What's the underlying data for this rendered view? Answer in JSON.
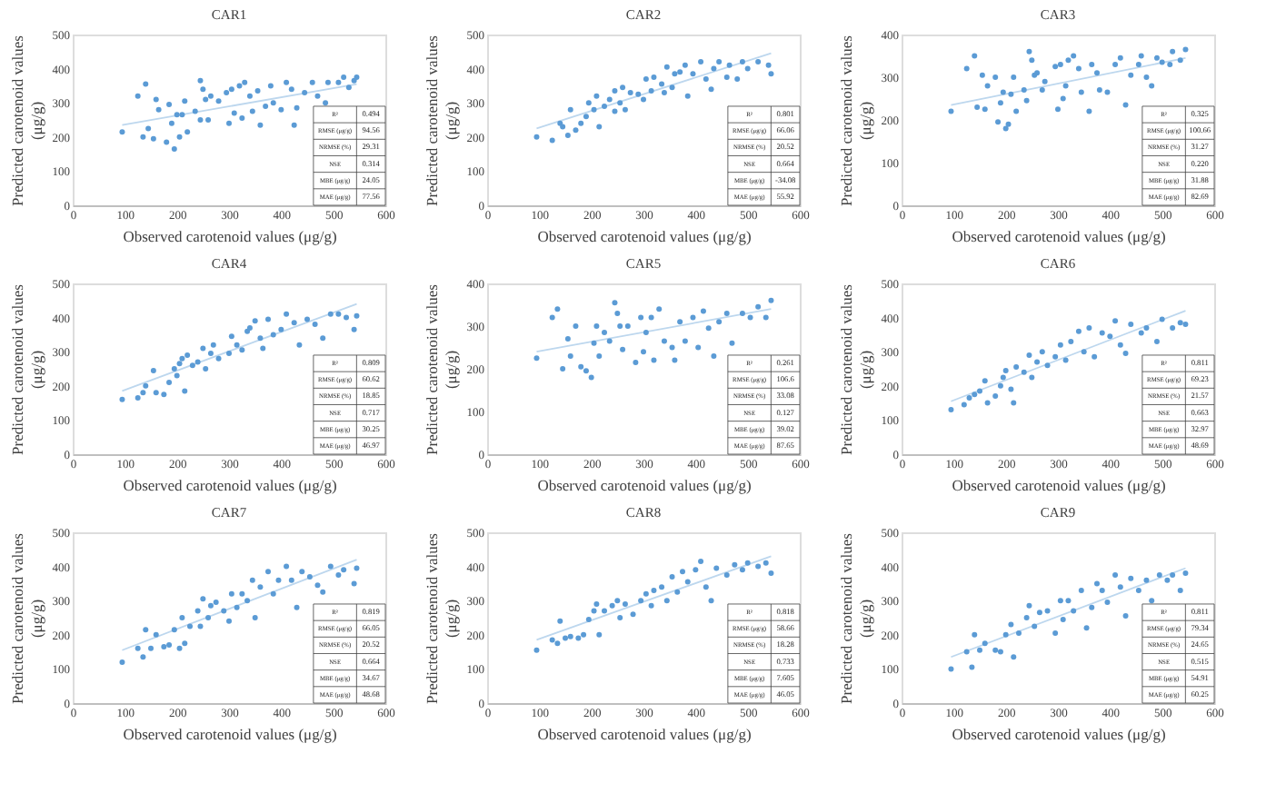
{
  "chart_data": [
    {
      "type": "scatter",
      "title": "CAR1",
      "xlabel": "Observed carotenoid values (μg/g)",
      "ylabel": "Predicted carotenoid values (μg/g)",
      "xlim": [
        0,
        600
      ],
      "xticks": [
        0,
        100,
        200,
        300,
        400,
        500,
        600
      ],
      "ylim": [
        0,
        500
      ],
      "yticks": [
        0,
        100,
        200,
        300,
        400,
        500
      ],
      "grid": false,
      "series": [
        {
          "type": "line",
          "marker": "none",
          "color": "#bdd7ee",
          "x": [
            95,
            545
          ],
          "values": [
            235,
            355
          ]
        },
        {
          "marker": "circle",
          "color": "#5b9bd5",
          "x": [
            95,
            125,
            135,
            140,
            145,
            155,
            160,
            165,
            180,
            185,
            190,
            195,
            200,
            205,
            210,
            215,
            220,
            235,
            245,
            245,
            250,
            255,
            260,
            265,
            280,
            295,
            300,
            305,
            310,
            320,
            325,
            330,
            340,
            345,
            355,
            360,
            370,
            380,
            385,
            400,
            410,
            420,
            425,
            430,
            445,
            460,
            470,
            485,
            490,
            510,
            520,
            530,
            540,
            545
          ],
          "values": [
            215,
            320,
            200,
            355,
            225,
            195,
            310,
            280,
            185,
            295,
            240,
            165,
            265,
            200,
            265,
            305,
            215,
            275,
            365,
            250,
            340,
            310,
            250,
            320,
            305,
            330,
            240,
            340,
            270,
            350,
            255,
            360,
            320,
            275,
            335,
            235,
            290,
            350,
            300,
            280,
            360,
            340,
            235,
            285,
            330,
            360,
            320,
            300,
            360,
            360,
            375,
            345,
            365,
            375
          ]
        }
      ],
      "annotations": [
        "R²",
        "0.494",
        "RMSE (μg/g)",
        "94.56",
        "NRMSE (%)",
        "29.31",
        "NSE",
        "0.314",
        "MBE (μg/g)",
        "24.05",
        "MAE (μg/g)",
        "77.56"
      ]
    },
    {
      "type": "scatter",
      "title": "CAR2",
      "xlabel": "Observed carotenoid values (μg/g)",
      "ylabel": "Predicted carotenoid values (μg/g)",
      "xlim": [
        0,
        600
      ],
      "xticks": [
        0,
        100,
        200,
        300,
        400,
        500,
        600
      ],
      "ylim": [
        0,
        500
      ],
      "yticks": [
        0,
        100,
        200,
        300,
        400,
        500
      ],
      "grid": false,
      "series": [
        {
          "type": "line",
          "marker": "none",
          "color": "#bdd7ee",
          "x": [
            95,
            545
          ],
          "values": [
            225,
            445
          ]
        },
        {
          "marker": "circle",
          "color": "#5b9bd5",
          "x": [
            95,
            125,
            140,
            145,
            155,
            160,
            170,
            180,
            190,
            195,
            205,
            210,
            215,
            225,
            235,
            245,
            245,
            255,
            260,
            265,
            275,
            290,
            300,
            305,
            315,
            320,
            335,
            340,
            345,
            355,
            360,
            370,
            380,
            385,
            395,
            410,
            420,
            430,
            435,
            445,
            460,
            465,
            480,
            490,
            500,
            520,
            540,
            545
          ],
          "values": [
            200,
            190,
            240,
            230,
            205,
            280,
            220,
            240,
            260,
            300,
            280,
            320,
            230,
            290,
            310,
            275,
            335,
            300,
            345,
            280,
            330,
            325,
            310,
            370,
            335,
            375,
            355,
            330,
            405,
            345,
            385,
            390,
            410,
            320,
            385,
            420,
            370,
            340,
            400,
            420,
            375,
            410,
            370,
            420,
            400,
            420,
            410,
            385
          ]
        }
      ],
      "annotations": [
        "R²",
        "0.801",
        "RMSE (μg/g)",
        "66.06",
        "NRMSE (%)",
        "20.52",
        "NSE",
        "0.664",
        "MBE (μg/g)",
        "-34.08",
        "MAE (μg/g)",
        "55.92"
      ]
    },
    {
      "type": "scatter",
      "title": "CAR3",
      "xlabel": "Observed carotenoid values (μg/g)",
      "ylabel": "Predicted carotenoid values (μg/g)",
      "xlim": [
        0,
        600
      ],
      "xticks": [
        0,
        100,
        200,
        300,
        400,
        500,
        600
      ],
      "ylim": [
        0,
        400
      ],
      "yticks": [
        0,
        100,
        200,
        300,
        400
      ],
      "grid": false,
      "series": [
        {
          "type": "line",
          "marker": "none",
          "color": "#bdd7ee",
          "x": [
            95,
            545
          ],
          "values": [
            235,
            345
          ]
        },
        {
          "marker": "circle",
          "color": "#5b9bd5",
          "x": [
            95,
            125,
            140,
            145,
            155,
            160,
            165,
            180,
            185,
            190,
            195,
            200,
            205,
            210,
            215,
            220,
            235,
            240,
            245,
            250,
            255,
            260,
            270,
            275,
            295,
            300,
            305,
            310,
            315,
            320,
            330,
            340,
            345,
            360,
            365,
            375,
            380,
            395,
            410,
            420,
            430,
            440,
            455,
            460,
            470,
            480,
            490,
            500,
            515,
            520,
            535,
            545
          ],
          "values": [
            220,
            320,
            350,
            230,
            305,
            225,
            280,
            300,
            195,
            240,
            265,
            180,
            190,
            260,
            300,
            220,
            270,
            245,
            360,
            340,
            305,
            310,
            270,
            290,
            325,
            225,
            330,
            250,
            280,
            340,
            350,
            320,
            265,
            220,
            330,
            310,
            270,
            265,
            330,
            345,
            235,
            305,
            330,
            350,
            300,
            280,
            345,
            335,
            330,
            360,
            340,
            365
          ]
        }
      ],
      "annotations": [
        "R²",
        "0.325",
        "RMSE (μg/g)",
        "100.66",
        "NRMSE (%)",
        "31.27",
        "NSE",
        "0.220",
        "MBE (μg/g)",
        "31.88",
        "MAE (μg/g)",
        "82.69"
      ]
    },
    {
      "type": "scatter",
      "title": "CAR4",
      "xlabel": "Observed carotenoid values (μg/g)",
      "ylabel": "Predicted carotenoid values (μg/g)",
      "xlim": [
        0,
        600
      ],
      "xticks": [
        0,
        100,
        200,
        300,
        400,
        500,
        600
      ],
      "ylim": [
        0,
        500
      ],
      "yticks": [
        0,
        100,
        200,
        300,
        400,
        500
      ],
      "grid": false,
      "series": [
        {
          "type": "line",
          "marker": "none",
          "color": "#bdd7ee",
          "x": [
            95,
            545
          ],
          "values": [
            185,
            440
          ]
        },
        {
          "marker": "circle",
          "color": "#5b9bd5",
          "x": [
            95,
            125,
            135,
            140,
            155,
            160,
            175,
            185,
            195,
            200,
            205,
            210,
            215,
            220,
            230,
            240,
            250,
            255,
            265,
            270,
            280,
            300,
            305,
            315,
            325,
            335,
            340,
            350,
            360,
            365,
            375,
            385,
            400,
            410,
            425,
            435,
            450,
            465,
            480,
            495,
            510,
            525,
            540,
            545
          ],
          "values": [
            160,
            165,
            180,
            200,
            245,
            180,
            175,
            210,
            250,
            230,
            265,
            280,
            185,
            290,
            260,
            270,
            310,
            250,
            295,
            320,
            280,
            295,
            345,
            320,
            305,
            360,
            370,
            390,
            340,
            310,
            395,
            350,
            365,
            410,
            385,
            320,
            395,
            380,
            340,
            410,
            410,
            400,
            365,
            405
          ]
        }
      ],
      "annotations": [
        "R²",
        "0.809",
        "RMSE (μg/g)",
        "60.62",
        "NRMSE (%)",
        "18.85",
        "NSE",
        "0.717",
        "MBE (μg/g)",
        "30.25",
        "MAE (μg/g)",
        "46.97"
      ]
    },
    {
      "type": "scatter",
      "title": "CAR5",
      "xlabel": "Observed carotenoid values (μg/g)",
      "ylabel": "Predicted carotenoid values (μg/g)",
      "xlim": [
        0,
        600
      ],
      "xticks": [
        0,
        100,
        200,
        300,
        400,
        500,
        600
      ],
      "ylim": [
        0,
        400
      ],
      "yticks": [
        0,
        100,
        200,
        300,
        400
      ],
      "grid": false,
      "series": [
        {
          "type": "line",
          "marker": "none",
          "color": "#bdd7ee",
          "x": [
            95,
            545
          ],
          "values": [
            240,
            340
          ]
        },
        {
          "marker": "circle",
          "color": "#5b9bd5",
          "x": [
            95,
            125,
            135,
            145,
            155,
            160,
            170,
            180,
            190,
            200,
            205,
            210,
            215,
            225,
            235,
            245,
            250,
            255,
            260,
            270,
            285,
            295,
            300,
            305,
            315,
            320,
            330,
            340,
            355,
            360,
            370,
            380,
            395,
            405,
            415,
            425,
            435,
            445,
            460,
            470,
            490,
            505,
            520,
            535,
            545
          ],
          "values": [
            225,
            320,
            340,
            200,
            270,
            230,
            300,
            205,
            195,
            180,
            260,
            300,
            230,
            285,
            265,
            355,
            330,
            300,
            245,
            300,
            215,
            320,
            240,
            285,
            320,
            220,
            340,
            265,
            250,
            220,
            310,
            265,
            320,
            250,
            335,
            295,
            230,
            310,
            330,
            260,
            330,
            320,
            345,
            320,
            360
          ]
        }
      ],
      "annotations": [
        "R²",
        "0.261",
        "RMSE (μg/g)",
        "106.6",
        "NRMSE (%)",
        "33.08",
        "NSE",
        "0.127",
        "MBE (μg/g)",
        "39.02",
        "MAE (μg/g)",
        "87.65"
      ]
    },
    {
      "type": "scatter",
      "title": "CAR6",
      "xlabel": "Observed carotenoid values (μg/g)",
      "ylabel": "Predicted carotenoid values (μg/g)",
      "xlim": [
        0,
        600
      ],
      "xticks": [
        0,
        100,
        200,
        300,
        400,
        500,
        600
      ],
      "ylim": [
        0,
        500
      ],
      "yticks": [
        0,
        100,
        200,
        300,
        400,
        500
      ],
      "grid": false,
      "series": [
        {
          "type": "line",
          "marker": "none",
          "color": "#bdd7ee",
          "x": [
            95,
            545
          ],
          "values": [
            155,
            420
          ]
        },
        {
          "marker": "circle",
          "color": "#5b9bd5",
          "x": [
            95,
            120,
            130,
            140,
            150,
            160,
            165,
            180,
            190,
            195,
            200,
            210,
            215,
            220,
            235,
            245,
            250,
            260,
            270,
            280,
            295,
            305,
            315,
            325,
            340,
            350,
            360,
            370,
            385,
            400,
            410,
            420,
            430,
            440,
            460,
            470,
            490,
            500,
            520,
            535,
            545
          ],
          "values": [
            130,
            145,
            165,
            175,
            185,
            215,
            150,
            170,
            200,
            225,
            245,
            190,
            150,
            255,
            240,
            290,
            225,
            270,
            300,
            260,
            285,
            320,
            275,
            330,
            360,
            300,
            370,
            285,
            355,
            345,
            390,
            320,
            295,
            380,
            355,
            370,
            330,
            395,
            370,
            385,
            380
          ]
        }
      ],
      "annotations": [
        "R²",
        "0.811",
        "RMSE (μg/g)",
        "69.23",
        "NRMSE (%)",
        "21.57",
        "NSE",
        "0.663",
        "MBE (μg/g)",
        "32.97",
        "MAE (μg/g)",
        "48.69"
      ]
    },
    {
      "type": "scatter",
      "title": "CAR7",
      "xlabel": "Observed carotenoid values (μg/g)",
      "ylabel": "Predicted carotenoid values (μg/g)",
      "xlim": [
        0,
        600
      ],
      "xticks": [
        0,
        100,
        200,
        300,
        400,
        500,
        600
      ],
      "ylim": [
        0,
        500
      ],
      "yticks": [
        0,
        100,
        200,
        300,
        400,
        500
      ],
      "grid": false,
      "series": [
        {
          "type": "line",
          "marker": "none",
          "color": "#bdd7ee",
          "x": [
            95,
            545
          ],
          "values": [
            155,
            420
          ]
        },
        {
          "marker": "circle",
          "color": "#5b9bd5",
          "x": [
            95,
            125,
            135,
            140,
            150,
            160,
            175,
            185,
            195,
            205,
            210,
            215,
            225,
            240,
            245,
            250,
            260,
            265,
            275,
            290,
            300,
            305,
            315,
            325,
            335,
            345,
            350,
            360,
            375,
            385,
            395,
            410,
            420,
            430,
            440,
            455,
            470,
            480,
            495,
            510,
            520,
            540,
            545
          ],
          "values": [
            120,
            160,
            135,
            215,
            160,
            200,
            165,
            170,
            215,
            160,
            250,
            175,
            225,
            270,
            225,
            305,
            250,
            285,
            295,
            270,
            240,
            320,
            280,
            320,
            300,
            360,
            250,
            340,
            385,
            320,
            360,
            400,
            360,
            280,
            385,
            370,
            345,
            325,
            400,
            375,
            390,
            350,
            395
          ]
        }
      ],
      "annotations": [
        "R²",
        "0.819",
        "RMSE (μg/g)",
        "66.05",
        "NRMSE (%)",
        "20.52",
        "NSE",
        "0.664",
        "MBE (μg/g)",
        "34.67",
        "MAE (μg/g)",
        "48.68"
      ]
    },
    {
      "type": "scatter",
      "title": "CAR8",
      "xlabel": "Observed carotenoid values (μg/g)",
      "ylabel": "Predicted carotenoid values (μg/g)",
      "xlim": [
        0,
        600
      ],
      "xticks": [
        0,
        100,
        200,
        300,
        400,
        500,
        600
      ],
      "ylim": [
        0,
        500
      ],
      "yticks": [
        0,
        100,
        200,
        300,
        400,
        500
      ],
      "grid": false,
      "series": [
        {
          "type": "line",
          "marker": "none",
          "color": "#bdd7ee",
          "x": [
            95,
            545
          ],
          "values": [
            185,
            430
          ]
        },
        {
          "marker": "circle",
          "color": "#5b9bd5",
          "x": [
            95,
            125,
            135,
            140,
            150,
            160,
            175,
            185,
            195,
            205,
            210,
            215,
            225,
            240,
            250,
            255,
            265,
            280,
            295,
            305,
            315,
            320,
            335,
            345,
            355,
            365,
            375,
            385,
            400,
            410,
            420,
            430,
            440,
            460,
            475,
            490,
            500,
            520,
            535,
            545
          ],
          "values": [
            155,
            185,
            175,
            240,
            190,
            195,
            190,
            200,
            245,
            270,
            290,
            200,
            270,
            285,
            300,
            250,
            290,
            260,
            300,
            320,
            285,
            330,
            340,
            300,
            370,
            325,
            385,
            355,
            390,
            415,
            340,
            300,
            395,
            375,
            405,
            390,
            410,
            400,
            410,
            380
          ]
        }
      ],
      "annotations": [
        "R²",
        "0.818",
        "RMSE (μg/g)",
        "58.66",
        "NRMSE (%)",
        "18.28",
        "NSE",
        "0.733",
        "MBE (μg/g)",
        "7.605",
        "MAE (μg/g)",
        "46.05"
      ]
    },
    {
      "type": "scatter",
      "title": "CAR9",
      "xlabel": "Observed carotenoid values (μg/g)",
      "ylabel": "Predicted carotenoid values (μg/g)",
      "xlim": [
        0,
        600
      ],
      "xticks": [
        0,
        100,
        200,
        300,
        400,
        500,
        600
      ],
      "ylim": [
        0,
        500
      ],
      "yticks": [
        0,
        100,
        200,
        300,
        400,
        500
      ],
      "grid": false,
      "series": [
        {
          "type": "line",
          "marker": "none",
          "color": "#bdd7ee",
          "x": [
            95,
            545
          ],
          "values": [
            135,
            395
          ]
        },
        {
          "marker": "circle",
          "color": "#5b9bd5",
          "x": [
            95,
            125,
            135,
            140,
            150,
            160,
            180,
            190,
            200,
            210,
            215,
            225,
            240,
            245,
            255,
            265,
            280,
            295,
            305,
            310,
            320,
            330,
            345,
            355,
            365,
            375,
            385,
            395,
            410,
            420,
            430,
            440,
            455,
            470,
            480,
            495,
            510,
            520,
            535,
            545
          ],
          "values": [
            100,
            150,
            105,
            200,
            155,
            175,
            155,
            150,
            200,
            230,
            135,
            205,
            250,
            285,
            225,
            265,
            270,
            205,
            300,
            245,
            300,
            270,
            330,
            220,
            280,
            350,
            330,
            295,
            375,
            340,
            255,
            365,
            330,
            360,
            300,
            375,
            360,
            375,
            330,
            380
          ]
        }
      ],
      "annotations": [
        "R²",
        "0.811",
        "RMSE (μg/g)",
        "79.34",
        "NRMSE (%)",
        "24.65",
        "NSE",
        "0.515",
        "MBE (μg/g)",
        "54.91",
        "MAE (μg/g)",
        "60.25"
      ]
    }
  ]
}
